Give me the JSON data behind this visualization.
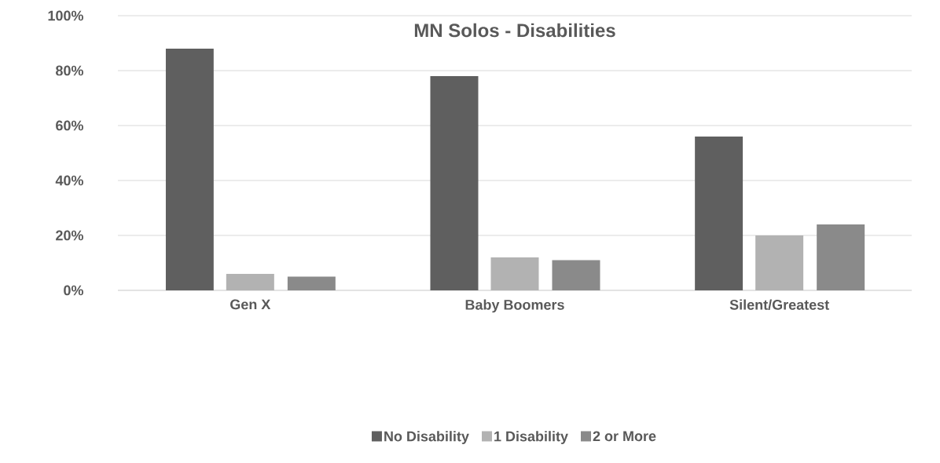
{
  "chart_data": {
    "type": "bar",
    "title": "MN Solos - Disabilities",
    "categories": [
      "Gen X",
      "Baby Boomers",
      "Silent/Greatest"
    ],
    "series": [
      {
        "name": "No Disability",
        "color": "#5f5f5f",
        "values": [
          88,
          78,
          56
        ]
      },
      {
        "name": "1 Disability",
        "color": "#b2b2b2",
        "values": [
          6,
          12,
          20
        ]
      },
      {
        "name": "2 or More",
        "color": "#8a8a8a",
        "values": [
          5,
          11,
          24
        ]
      }
    ],
    "ylim": [
      0,
      100
    ],
    "yticks": [
      {
        "value": 0,
        "label": "0%"
      },
      {
        "value": 20,
        "label": "20%"
      },
      {
        "value": 40,
        "label": "40%"
      },
      {
        "value": 60,
        "label": "60%"
      },
      {
        "value": 80,
        "label": "80%"
      },
      {
        "value": 100,
        "label": "100%"
      }
    ],
    "grid": "y",
    "legend": "bottom"
  }
}
